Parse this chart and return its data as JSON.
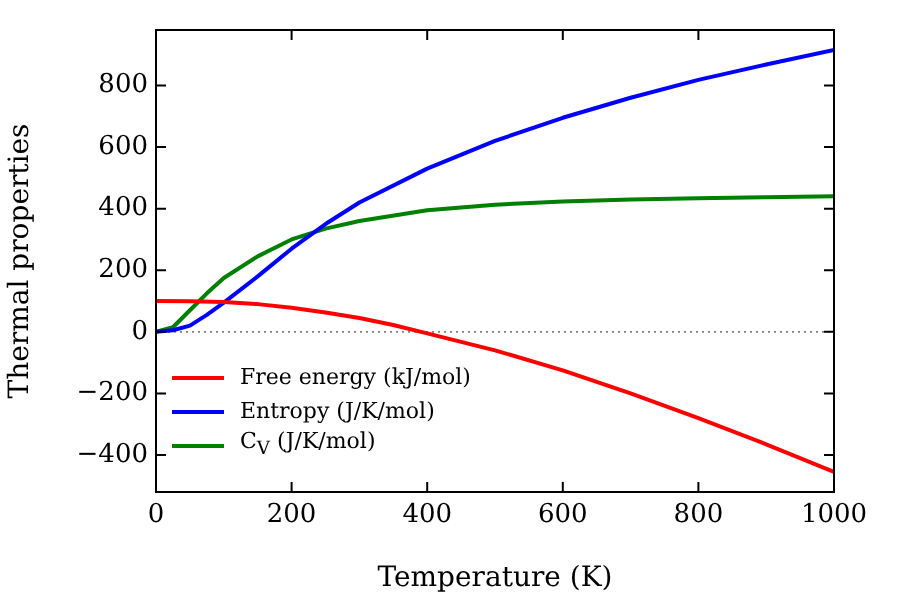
{
  "chart_data": {
    "type": "line",
    "xlabel": "Temperature (K)",
    "ylabel": "Thermal properties",
    "xlim": [
      0,
      1000
    ],
    "xticks": [
      0,
      200,
      400,
      600,
      800,
      1000
    ],
    "ylim": [
      -520,
      980
    ],
    "yticks": [
      -400,
      -200,
      0,
      200,
      400,
      600,
      800
    ],
    "grid": false,
    "legend": "bottom left",
    "line_style": "solid",
    "marker": "none",
    "ref_lines": [
      {
        "axis": "y",
        "value": 0,
        "color": "#808080",
        "line_style": "dotted"
      }
    ],
    "series": [
      {
        "name": "Free energy (kJ/mol)",
        "color": "#ff0000",
        "x": [
          0,
          50,
          100,
          150,
          200,
          250,
          300,
          350,
          400,
          500,
          600,
          700,
          800,
          900,
          1000
        ],
        "values": [
          100,
          99,
          97,
          90,
          78,
          63,
          45,
          22,
          -5,
          -60,
          -125,
          -200,
          -280,
          -365,
          -455
        ]
      },
      {
        "name": "Entropy (J/K/mol)",
        "color": "#0000ff",
        "x": [
          0,
          25,
          50,
          75,
          100,
          150,
          200,
          250,
          300,
          400,
          500,
          600,
          700,
          800,
          900,
          1000
        ],
        "values": [
          0,
          5,
          20,
          55,
          95,
          180,
          270,
          350,
          420,
          530,
          620,
          695,
          760,
          818,
          868,
          915
        ]
      },
      {
        "name": "C$_{V}$ (J/K/mol)",
        "color": "#008000",
        "x": [
          0,
          25,
          50,
          75,
          100,
          150,
          200,
          250,
          300,
          400,
          500,
          600,
          700,
          800,
          900,
          1000
        ],
        "values": [
          0,
          15,
          70,
          125,
          175,
          245,
          300,
          335,
          360,
          395,
          413,
          423,
          430,
          434,
          437,
          440
        ]
      }
    ]
  }
}
